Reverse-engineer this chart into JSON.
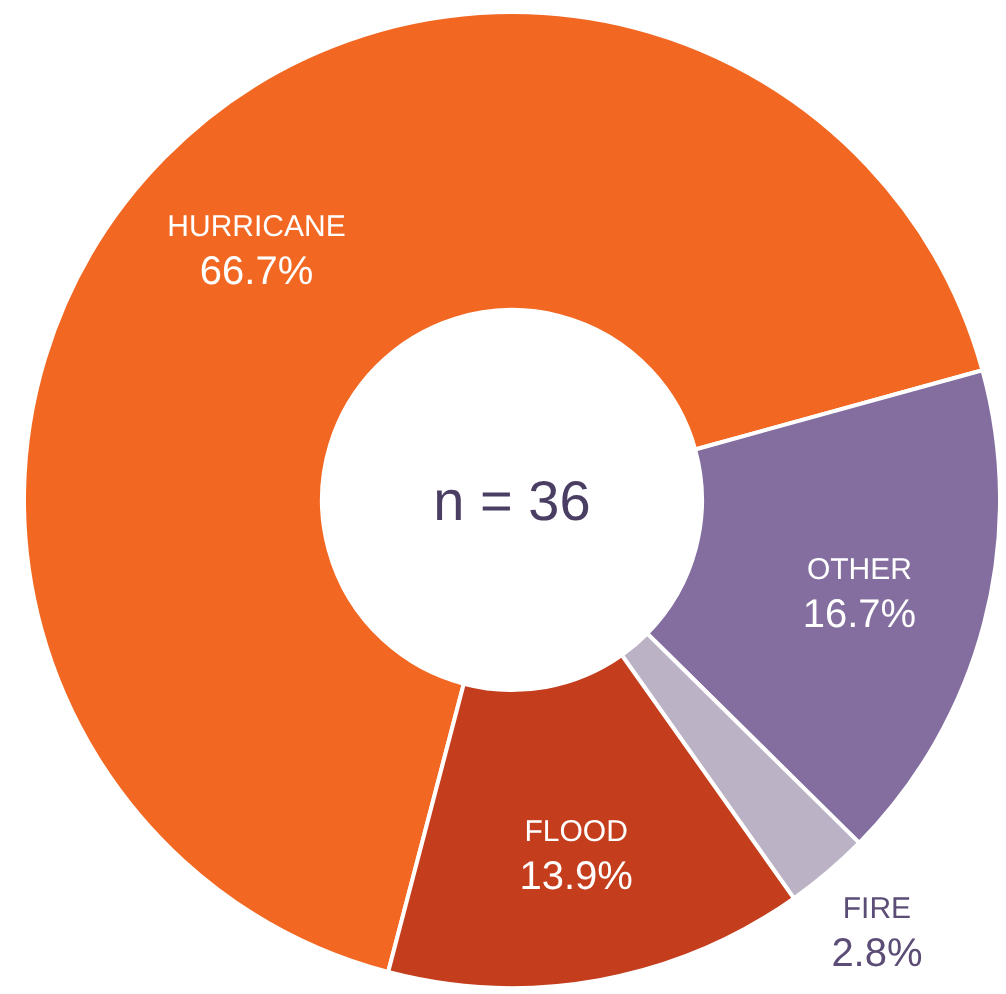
{
  "chart_data": {
    "type": "donut",
    "categories": [
      "HURRICANE",
      "OTHER",
      "FIRE",
      "FLOOD"
    ],
    "values": [
      66.7,
      16.7,
      2.8,
      13.9
    ],
    "colors": [
      "#f26822",
      "#836e9f",
      "#bcb2c6",
      "#c43e1e"
    ],
    "value_labels": [
      "66.7%",
      "16.7%",
      "2.8%",
      "13.9%"
    ],
    "annotations": [
      "n = 36"
    ]
  }
}
